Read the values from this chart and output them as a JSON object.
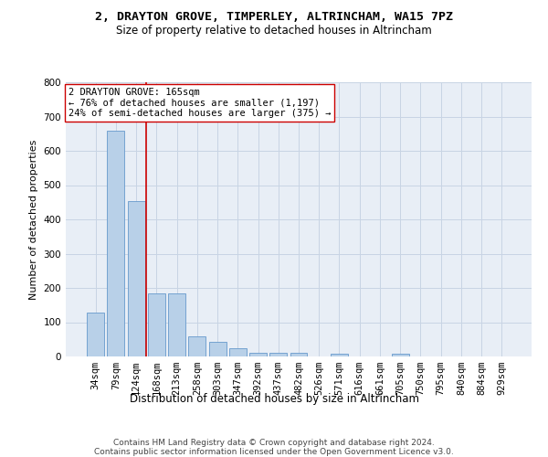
{
  "title": "2, DRAYTON GROVE, TIMPERLEY, ALTRINCHAM, WA15 7PZ",
  "subtitle": "Size of property relative to detached houses in Altrincham",
  "xlabel": "Distribution of detached houses by size in Altrincham",
  "ylabel": "Number of detached properties",
  "bar_color": "#b8d0e8",
  "bar_edge_color": "#6699cc",
  "categories": [
    "34sqm",
    "79sqm",
    "124sqm",
    "168sqm",
    "213sqm",
    "258sqm",
    "303sqm",
    "347sqm",
    "392sqm",
    "437sqm",
    "482sqm",
    "526sqm",
    "571sqm",
    "616sqm",
    "661sqm",
    "705sqm",
    "750sqm",
    "795sqm",
    "840sqm",
    "884sqm",
    "929sqm"
  ],
  "values": [
    128,
    660,
    453,
    185,
    185,
    60,
    43,
    25,
    12,
    12,
    10,
    0,
    8,
    0,
    0,
    8,
    0,
    0,
    0,
    0,
    0
  ],
  "vline_x": 2.5,
  "vline_color": "#cc0000",
  "annotation_text": "2 DRAYTON GROVE: 165sqm\n← 76% of detached houses are smaller (1,197)\n24% of semi-detached houses are larger (375) →",
  "annotation_box_color": "#ffffff",
  "annotation_box_edge": "#cc0000",
  "ylim": [
    0,
    800
  ],
  "yticks": [
    0,
    100,
    200,
    300,
    400,
    500,
    600,
    700,
    800
  ],
  "grid_color": "#c8d4e4",
  "bg_color": "#e8eef6",
  "footer": "Contains HM Land Registry data © Crown copyright and database right 2024.\nContains public sector information licensed under the Open Government Licence v3.0.",
  "title_fontsize": 9.5,
  "subtitle_fontsize": 8.5,
  "xlabel_fontsize": 8.5,
  "ylabel_fontsize": 8,
  "tick_fontsize": 7.5,
  "annotation_fontsize": 7.5,
  "footer_fontsize": 6.5
}
